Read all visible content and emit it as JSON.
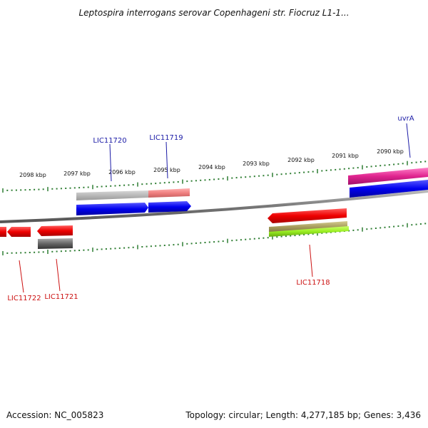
{
  "title": "Leptospira interrogans serovar Copenhageni str. Fiocruz L1-1...",
  "footer": {
    "accession": "Accession: NC_005823",
    "summary": "Topology: circular; Length: 4,277,185 bp; Genes: 3,436"
  },
  "scale_ticks": [
    "2098 kbp",
    "2097 kbp",
    "2096 kbp",
    "2095 kbp",
    "2094 kbp",
    "2093 kbp",
    "2092 kbp",
    "2091 kbp",
    "2090 kbp"
  ],
  "genes_top": [
    "LIC11720",
    "LIC11719",
    "uvrA"
  ],
  "genes_bottom": [
    "LIC11722",
    "LIC11721",
    "LIC11718"
  ],
  "colors": {
    "backbone": "#888888",
    "ticks": "#2e7d32",
    "label_top": "#1a1aa6",
    "label_bottom": "#cc1111",
    "red": "#ee1111",
    "blue": "#1111ee",
    "magenta": "#e0258f",
    "grey": "#666666",
    "olive": "#a49a5a",
    "lime": "#99ee22"
  }
}
